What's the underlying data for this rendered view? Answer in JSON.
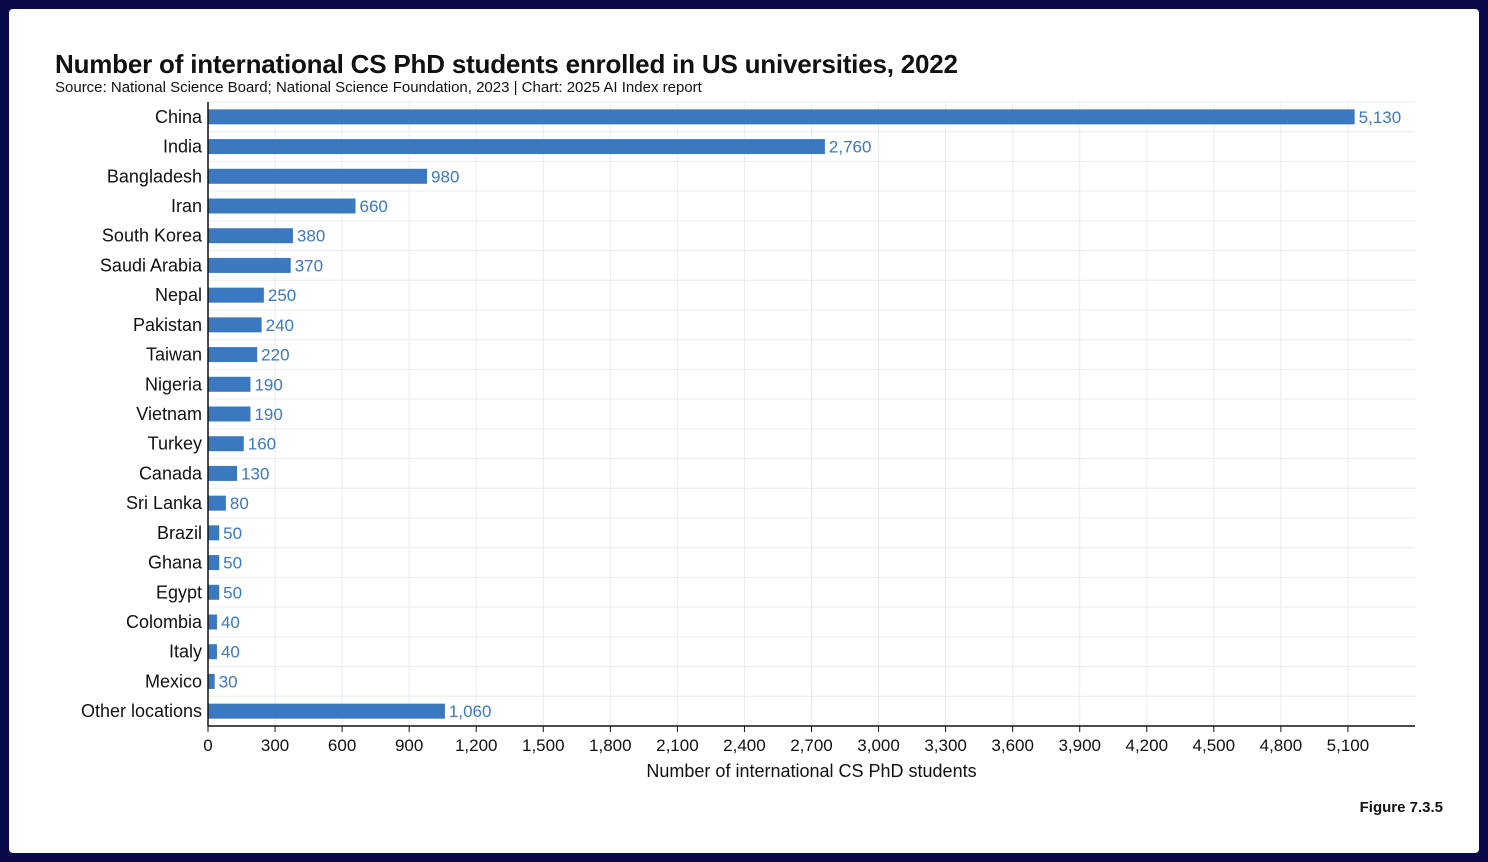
{
  "chart_data": {
    "type": "bar",
    "orientation": "horizontal",
    "title": "Number of international CS PhD students enrolled in US universities, 2022",
    "subtitle": "Source: National Science Board; National Science Foundation, 2023 | Chart: 2025 AI Index report",
    "categories": [
      "China",
      "India",
      "Bangladesh",
      "Iran",
      "South Korea",
      "Saudi Arabia",
      "Nepal",
      "Pakistan",
      "Taiwan",
      "Nigeria",
      "Vietnam",
      "Turkey",
      "Canada",
      "Sri Lanka",
      "Brazil",
      "Ghana",
      "Egypt",
      "Colombia",
      "Italy",
      "Mexico",
      "Other locations"
    ],
    "values": [
      5130,
      2760,
      980,
      660,
      380,
      370,
      250,
      240,
      220,
      190,
      190,
      160,
      130,
      80,
      50,
      50,
      50,
      40,
      40,
      30,
      1060
    ],
    "value_labels": [
      "5,130",
      "2,760",
      "980",
      "660",
      "380",
      "370",
      "250",
      "240",
      "220",
      "190",
      "190",
      "160",
      "130",
      "80",
      "50",
      "50",
      "50",
      "40",
      "40",
      "30",
      "1,060"
    ],
    "xticks": [
      0,
      300,
      600,
      900,
      1200,
      1500,
      1800,
      2100,
      2400,
      2700,
      3000,
      3300,
      3600,
      3900,
      4200,
      4500,
      4800,
      5100
    ],
    "xtick_labels": [
      "0",
      "300",
      "600",
      "900",
      "1,200",
      "1,500",
      "1,800",
      "2,100",
      "2,400",
      "2,700",
      "3,000",
      "3,300",
      "3,600",
      "3,900",
      "4,200",
      "4,500",
      "4,800",
      "5,100"
    ],
    "xlim": [
      0,
      5400
    ],
    "xlabel": "Number of international CS PhD students",
    "ylabel": "",
    "grid": true,
    "bar_color": "#3a78c0",
    "label_color": "#3a78c0"
  },
  "figure_label": "Figure 7.3.5"
}
